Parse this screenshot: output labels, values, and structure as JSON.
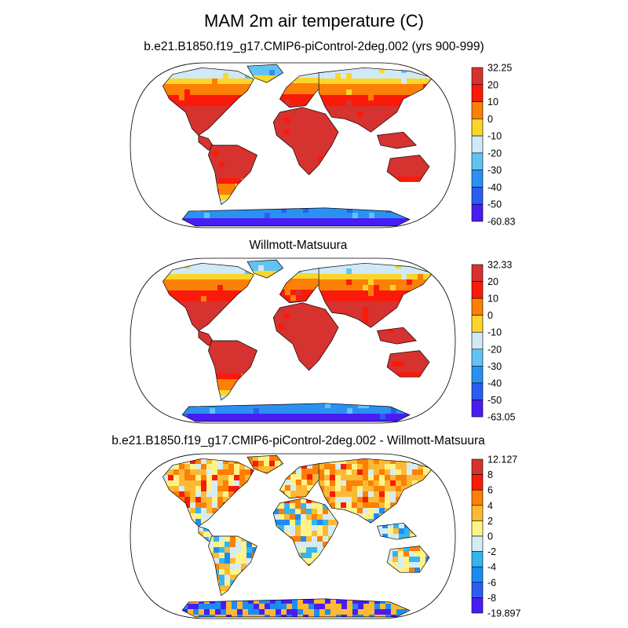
{
  "figure": {
    "title": "MAM 2m air temperature (C)",
    "colors": {
      "land_warm": "#d6322f",
      "ocean": "#ffffff",
      "coast": "#000000"
    }
  },
  "panels": [
    {
      "id": "model",
      "title": "b.e21.B1850.f19_g17.CMIP6-piControl-2deg.002 (yrs 900-999)",
      "colorbar": {
        "labels": [
          "32.25",
          "20",
          "10",
          "0",
          "-10",
          "-20",
          "-30",
          "-40",
          "-50",
          "-60.83"
        ],
        "colors": [
          "#d6322f",
          "#fa1a0a",
          "#fb8005",
          "#fcd52a",
          "#cfe9f7",
          "#62c3f2",
          "#2a91f2",
          "#2b5df2",
          "#4a1cf4"
        ]
      }
    },
    {
      "id": "obs",
      "title": "Willmott-Matsuura",
      "colorbar": {
        "labels": [
          "32.33",
          "20",
          "10",
          "0",
          "-10",
          "-20",
          "-30",
          "-40",
          "-50",
          "-63.05"
        ],
        "colors": [
          "#d6322f",
          "#fa1a0a",
          "#fb8005",
          "#fcd52a",
          "#cfe9f7",
          "#62c3f2",
          "#2a91f2",
          "#2b5df2",
          "#4a1cf4"
        ]
      }
    },
    {
      "id": "diff",
      "title": "b.e21.B1850.f19_g17.CMIP6-piControl-2deg.002 - Willmott-Matsuura",
      "colorbar": {
        "labels": [
          "12.127",
          "8",
          "6",
          "4",
          "2",
          "0",
          "-2",
          "-4",
          "-6",
          "-8",
          "-19.897"
        ],
        "colors": [
          "#d6322f",
          "#fa1a0a",
          "#fb8005",
          "#fdb933",
          "#fef389",
          "#d6ecf5",
          "#34b5f0",
          "#1c8cf2",
          "#2b5df2",
          "#4a1cf4"
        ]
      }
    }
  ]
}
